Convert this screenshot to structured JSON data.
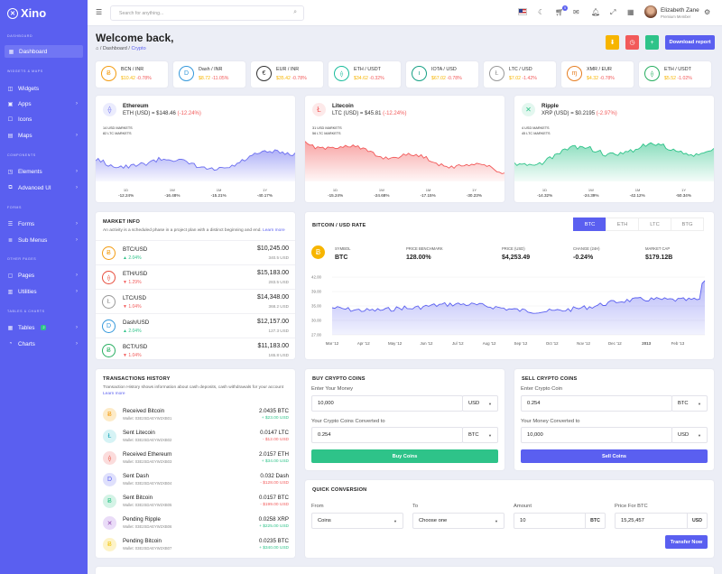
{
  "app": {
    "name": "Xino"
  },
  "sidebar": {
    "sections": [
      {
        "label": "DASHBOARD",
        "y": 0
      },
      {
        "label": "WIDGETS & MAPS"
      },
      {
        "label": "COMPONENTS"
      },
      {
        "label": "FORMS"
      },
      {
        "label": "OTHER PAGES"
      },
      {
        "label": "TABLES & CHARTS"
      }
    ],
    "items": [
      {
        "label": "Dashboard",
        "icon": "dashboard-icon"
      },
      {
        "label": "Widgets",
        "icon": "widgets-icon"
      },
      {
        "label": "Apps",
        "icon": "apps-icon"
      },
      {
        "label": "Icons",
        "icon": "icons-icon"
      },
      {
        "label": "Maps",
        "icon": "map-icon"
      },
      {
        "label": "Elements",
        "icon": "elements-icon"
      },
      {
        "label": "Advanced UI",
        "icon": "advanced-ui-icon"
      },
      {
        "label": "Forms",
        "icon": "forms-icon"
      },
      {
        "label": "Sub Menus",
        "icon": "submenus-icon"
      },
      {
        "label": "Pages",
        "icon": "pages-icon"
      },
      {
        "label": "Utilities",
        "icon": "utilities-icon"
      },
      {
        "label": "Tables",
        "icon": "tables-icon",
        "badge": "2"
      },
      {
        "label": "Charts",
        "icon": "charts-icon"
      }
    ]
  },
  "header": {
    "search_placeholder": "Search for anything...",
    "cart_count": "5",
    "user_name": "Elizabeth Zane",
    "user_role": "Premium Member"
  },
  "page": {
    "title": "Welcome back,",
    "breadcrumb_home": "Dashboard",
    "breadcrumb_current": "Crypto",
    "download_label": "Download report"
  },
  "tickers": [
    {
      "pair": "BCN / INR",
      "price": "$10.42",
      "change": "-0.78%",
      "up": false,
      "symbol": "Ƀ",
      "color": "#f39c12"
    },
    {
      "pair": "Dash / INR",
      "price": "$8.72",
      "change": "-11.05%",
      "up": false,
      "symbol": "D",
      "color": "#3498db"
    },
    {
      "pair": "EUR / INR",
      "price": "$35.42",
      "change": "-0.78%",
      "up": false,
      "symbol": "€",
      "color": "#333333"
    },
    {
      "pair": "ETH / USDT",
      "price": "$34.62",
      "change": "-0.32%",
      "up": false,
      "symbol": "⟠",
      "color": "#1abc9c"
    },
    {
      "pair": "IOTA / USD",
      "price": "$67.02",
      "change": "-0.78%",
      "up": false,
      "symbol": "ι",
      "color": "#16a085"
    },
    {
      "pair": "LTC / USD",
      "price": "$7.02",
      "change": "-1.42%",
      "up": false,
      "symbol": "Ł",
      "color": "#999999"
    },
    {
      "pair": "XMR / EUR",
      "price": "$4.32",
      "change": "-0.78%",
      "up": false,
      "symbol": "ɱ",
      "color": "#e67e22"
    },
    {
      "pair": "ETH / USDT",
      "price": "$5.52",
      "change": "-1.02%",
      "up": false,
      "symbol": "⟠",
      "color": "#27ae60"
    }
  ],
  "coin_cards": [
    {
      "name": "Ethereum",
      "price": "ETH (USD) = $148.46",
      "change": "(-12.24%)",
      "m1": "14 USD MARKETS",
      "m2": "82 LTC MARKETS",
      "color": "#6c6ff0",
      "fill": "#b9bcf7",
      "tf": [
        "1D",
        "1W",
        "1M",
        "1Y"
      ],
      "tfv": [
        "-12.24%",
        "-16.48%",
        "-15.21%",
        "-40.17%"
      ],
      "symbol": "⟠"
    },
    {
      "name": "Litecoin",
      "price": "LTC (USD) = $45.81",
      "change": "(-12.24%)",
      "m1": "31 USD MARKETS",
      "m2": "56 LTC MARKETS",
      "color": "#f25a5a",
      "fill": "#f8b9b9",
      "tf": [
        "1D",
        "1W",
        "1M",
        "1Y"
      ],
      "tfv": [
        "-15.24%",
        "-24.68%",
        "-17.15%",
        "-30.23%"
      ],
      "symbol": "Ł"
    },
    {
      "name": "Ripple",
      "price": "XRP (USD) = $0.2195",
      "change": "(-2.97%)",
      "m1": "4 USD MARKETS",
      "m2": "45 LTC MARKETS",
      "color": "#2ec389",
      "fill": "#a9e8cf",
      "tf": [
        "1D",
        "1W",
        "1M",
        "1Y"
      ],
      "tfv": [
        "-14.32%",
        "-24.39%",
        "-42.12%",
        "-50.34%"
      ],
      "symbol": "✕"
    }
  ],
  "market_info": {
    "title": "MARKET INFO",
    "desc": "An activity is a scheduled phase in a project plan with a distinct beginning and end.",
    "learn_more": "Learn more",
    "rows": [
      {
        "pair": "BTC/USD",
        "change": "▲ 2.04%",
        "up": true,
        "value": "$10,245.00",
        "vol": "340.5 USD",
        "symbol": "Ƀ",
        "color": "#f39c12"
      },
      {
        "pair": "ETH/USD",
        "change": "▼ 1.29%",
        "up": false,
        "value": "$15,183.00",
        "vol": "283.5 USD",
        "symbol": "⟠",
        "color": "#e74c3c"
      },
      {
        "pair": "LTC/USD",
        "change": "▼ 1.04%",
        "up": false,
        "value": "$14,348.00",
        "vol": "368.2 USD",
        "symbol": "Ł",
        "color": "#999999"
      },
      {
        "pair": "Dash/USD",
        "change": "▲ 2.04%",
        "up": true,
        "value": "$12,157.00",
        "vol": "127.3 USD",
        "symbol": "D",
        "color": "#3498db"
      },
      {
        "pair": "BCT/USD",
        "change": "▼ 1.04%",
        "up": false,
        "value": "$11,183.00",
        "vol": "165.8 USD",
        "symbol": "Ƀ",
        "color": "#27ae60"
      }
    ]
  },
  "btc_rate": {
    "title": "BITCOIN / USD RATE",
    "tabs": [
      "BTC",
      "ETH",
      "LTC",
      "BTG"
    ],
    "stats": [
      {
        "label": "SYMBOL",
        "value": "BTC"
      },
      {
        "label": "PRICE BENCHMARK",
        "value": "128.00%"
      },
      {
        "label": "PRICE (USD)",
        "value": "$4,253.49"
      },
      {
        "label": "CHANGE (24H)",
        "value": "-0.24%"
      },
      {
        "label": "MARKET CAP",
        "value": "$179.12B"
      }
    ],
    "y_ticks": [
      "42.00",
      "39.00",
      "35.00",
      "30.00",
      "27.00"
    ],
    "x_ticks": [
      "Mar '12",
      "Apr '12",
      "May '12",
      "Jun '12",
      "Jul '12",
      "Aug '12",
      "Sep '12",
      "Oct '12",
      "Nov '12",
      "Dec '12",
      "2013",
      "Feb '13"
    ]
  },
  "transactions": {
    "title": "TRANSACTIONS HISTORY",
    "desc": "Transaction History shows information about cash deposits, cash withdrawals for your account",
    "learn_more": "Learn more",
    "rows": [
      {
        "title": "Received Bitcoin",
        "wallet": "Wallet: 03E2SDAEYW2XB01",
        "amount": "2.0435 BTC",
        "usd": "+ $23.00 USD",
        "up": true,
        "symbol": "Ƀ",
        "bg": "#fdebc8",
        "fg": "#f39c12"
      },
      {
        "title": "Sent Litecoin",
        "wallet": "Wallet: 03E2SDAEYW2XB02",
        "amount": "0.0147 LTC",
        "usd": "- $12.00 USD",
        "up": false,
        "symbol": "Ł",
        "bg": "#d6f3f5",
        "fg": "#17a2b8"
      },
      {
        "title": "Received Ethereum",
        "wallet": "Wallet: 03E2SDAEYW2XB03",
        "amount": "2.0157 ETH",
        "usd": "+ $34.00 USD",
        "up": true,
        "symbol": "⟠",
        "bg": "#fbdcdc",
        "fg": "#e74c3c"
      },
      {
        "title": "Sent Dash",
        "wallet": "Wallet: 03E2SDAEYW2XB04",
        "amount": "0.032 Dash",
        "usd": "- $128.00 USD",
        "up": false,
        "symbol": "D",
        "bg": "#dfe0fc",
        "fg": "#5a5ff0"
      },
      {
        "title": "Sent Bitcoin",
        "wallet": "Wallet: 03E2SDAEYW2XB05",
        "amount": "0.0157 BTC",
        "usd": "- $199.00 USD",
        "up": false,
        "symbol": "Ƀ",
        "bg": "#d4f3e6",
        "fg": "#2ec389"
      },
      {
        "title": "Pending Ripple",
        "wallet": "Wallet: 03E2SDAEYW2XB06",
        "amount": "0.0258 XRP",
        "usd": "+ $225.00 USD",
        "up": true,
        "symbol": "✕",
        "bg": "#eadcf8",
        "fg": "#8e44ad"
      },
      {
        "title": "Pending Bitcoin",
        "wallet": "Wallet: 03E2SDAEYW2XB07",
        "amount": "0.0235 BTC",
        "usd": "+ $340.00 USD",
        "up": true,
        "symbol": "Ƀ",
        "bg": "#fdf3c8",
        "fg": "#f1c40f"
      }
    ]
  },
  "buy": {
    "title": "BUY CRYPTO COINS",
    "l1": "Enter Your Money",
    "v1": "10,000",
    "c1": "USD",
    "l2": "Your Crypto Coins Converted to",
    "v2": "0.254",
    "c2": "BTC",
    "button": "Buy Coins"
  },
  "sell": {
    "title": "SELL CRYPTO COINS",
    "l1": "Enter Crypto Coin",
    "v1": "0.254",
    "c1": "BTC",
    "l2": "Your Money Converted to",
    "v2": "10,000",
    "c2": "USD",
    "button": "Sell Coins"
  },
  "quick": {
    "title": "QUICK CONVERSION",
    "from_label": "From",
    "from_value": "Coins",
    "to_label": "To",
    "to_value": "Choose one",
    "amount_label": "Amount",
    "amount_value": "10",
    "amount_unit": "BTC",
    "price_label": "Price For BTC",
    "price_value": "15,25,457",
    "price_unit": "USD",
    "button": "Transfer Now"
  },
  "colors": {
    "primary": "#5a5ff0",
    "green": "#2ec389",
    "red": "#f25a5a",
    "orange": "#f7b500"
  }
}
